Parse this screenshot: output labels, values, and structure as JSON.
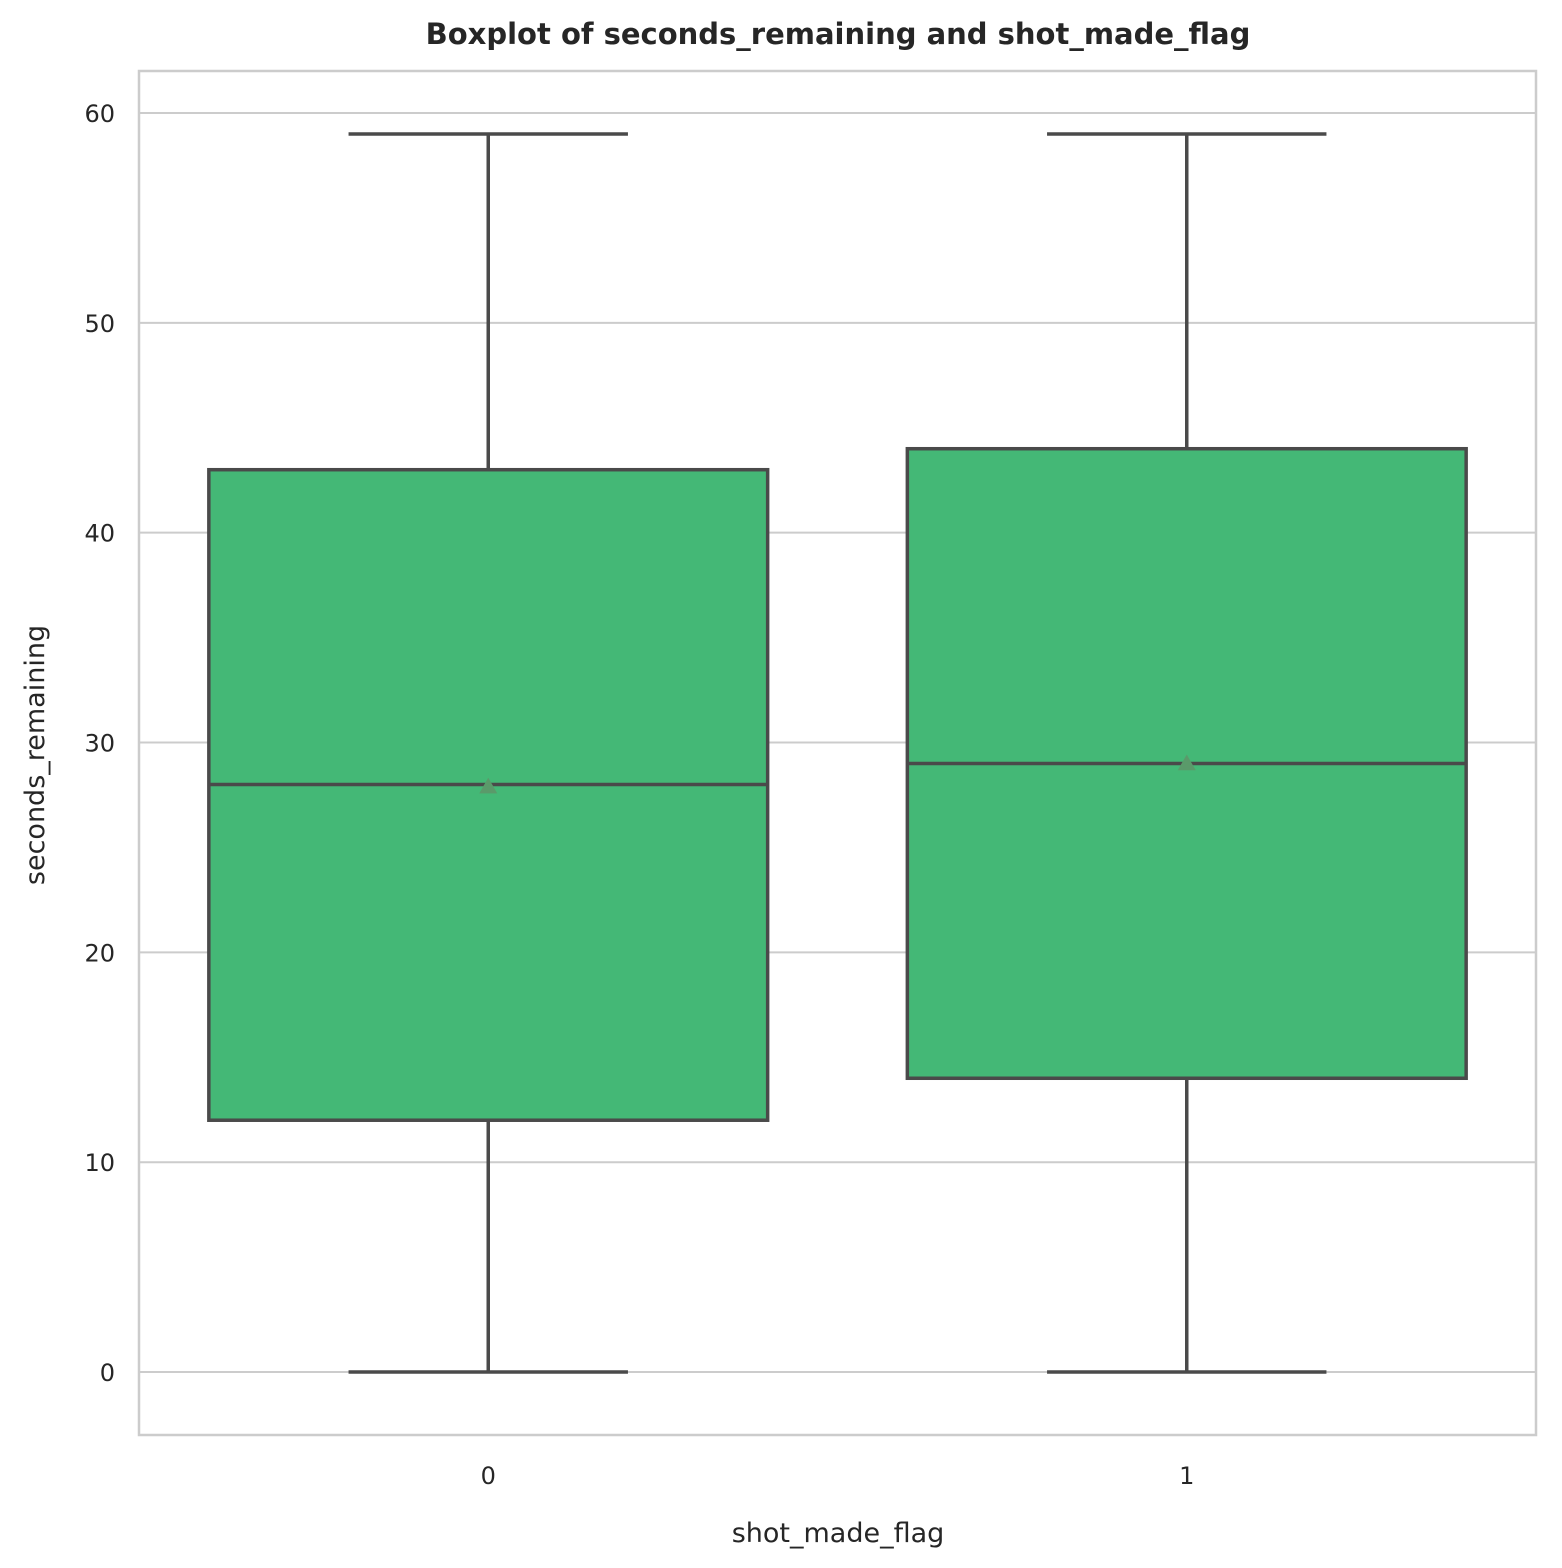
{
  "chart_data": {
    "type": "boxplot",
    "title": "Boxplot of seconds_remaining and shot_made_flag",
    "xlabel": "shot_made_flag",
    "ylabel": "seconds_remaining",
    "ylim": [
      -3,
      62
    ],
    "yticks": [
      0,
      10,
      20,
      30,
      40,
      50,
      60
    ],
    "grid": true,
    "categories": [
      "0",
      "1"
    ],
    "boxes": [
      {
        "category": "0",
        "whisker_low": 0,
        "q1": 12,
        "median": 28,
        "q3": 43,
        "whisker_high": 59,
        "mean": 27.9
      },
      {
        "category": "1",
        "whisker_low": 0,
        "q1": 14,
        "median": 29,
        "q3": 44,
        "whisker_high": 59,
        "mean": 29.0
      }
    ],
    "colors": {
      "box_fill": "#44b876",
      "box_edge": "#4a4a4a",
      "mean_marker": "#5a9a6a",
      "grid": "#cccccc",
      "spine": "#cccccc"
    }
  }
}
